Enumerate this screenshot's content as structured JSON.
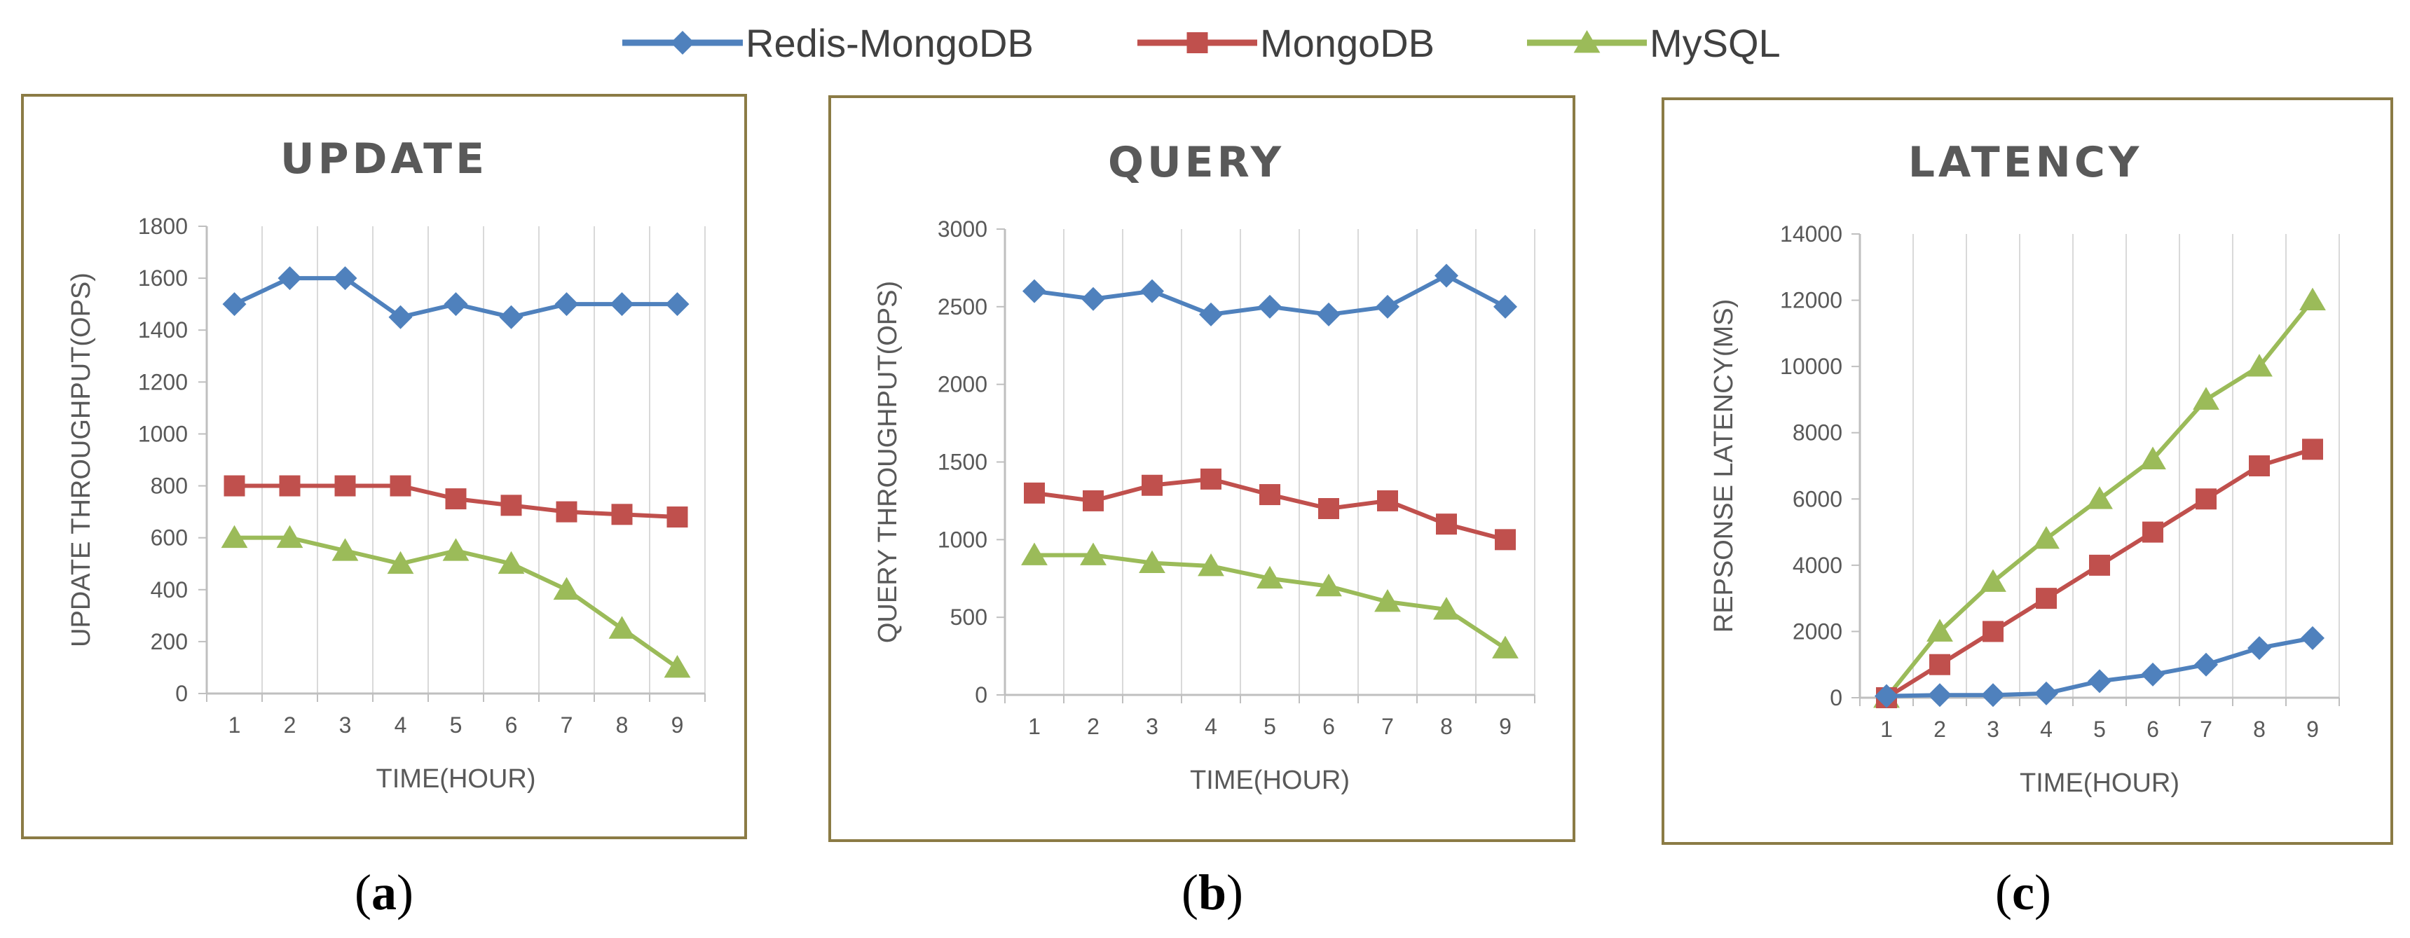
{
  "legend": [
    {
      "name": "Redis-MongoDB",
      "color": "#4F81BD",
      "marker": "diamond"
    },
    {
      "name": "MongoDB",
      "color": "#C0504D",
      "marker": "square"
    },
    {
      "name": "MySQL",
      "color": "#9BBB59",
      "marker": "triangle"
    }
  ],
  "chart_data": [
    {
      "type": "line",
      "title": "UPDATE",
      "panel_label": "a",
      "xlabel": "TIME(HOUR)",
      "ylabel": "UPDATE THROUGHPUT(OPS)",
      "x": [
        1,
        2,
        3,
        4,
        5,
        6,
        7,
        8,
        9
      ],
      "ylim": [
        0,
        1800
      ],
      "yticks": [
        0,
        200,
        400,
        600,
        800,
        1000,
        1200,
        1400,
        1600,
        1800
      ],
      "series": [
        {
          "name": "Redis-MongoDB",
          "values": [
            1500,
            1600,
            1600,
            1450,
            1500,
            1450,
            1500,
            1500,
            1500
          ]
        },
        {
          "name": "MongoDB",
          "values": [
            800,
            800,
            800,
            800,
            750,
            725,
            700,
            690,
            680
          ]
        },
        {
          "name": "MySQL",
          "values": [
            600,
            600,
            550,
            500,
            550,
            500,
            400,
            250,
            100
          ]
        }
      ]
    },
    {
      "type": "line",
      "title": "QUERY",
      "panel_label": "b",
      "xlabel": "TIME(HOUR)",
      "ylabel": "QUERY THROUGHPUT(OPS)",
      "x": [
        1,
        2,
        3,
        4,
        5,
        6,
        7,
        8,
        9
      ],
      "ylim": [
        0,
        3000
      ],
      "yticks": [
        0,
        500,
        1000,
        1500,
        2000,
        2500,
        3000
      ],
      "series": [
        {
          "name": "Redis-MongoDB",
          "values": [
            2600,
            2550,
            2600,
            2450,
            2500,
            2450,
            2500,
            2700,
            2500
          ]
        },
        {
          "name": "MongoDB",
          "values": [
            1300,
            1250,
            1350,
            1390,
            1290,
            1200,
            1250,
            1100,
            1000
          ]
        },
        {
          "name": "MySQL",
          "values": [
            900,
            900,
            850,
            830,
            750,
            700,
            600,
            550,
            300
          ]
        }
      ]
    },
    {
      "type": "line",
      "title": "LATENCY",
      "panel_label": "c",
      "xlabel": "TIME(HOUR)",
      "ylabel": "REPSONSE LATENCY(MS)",
      "x": [
        1,
        2,
        3,
        4,
        5,
        6,
        7,
        8,
        9
      ],
      "ylim": [
        0,
        14000
      ],
      "yticks": [
        0,
        2000,
        4000,
        6000,
        8000,
        10000,
        12000,
        14000
      ],
      "series": [
        {
          "name": "Redis-MongoDB",
          "values": [
            50,
            80,
            80,
            130,
            500,
            700,
            1000,
            1500,
            1800
          ]
        },
        {
          "name": "MongoDB",
          "values": [
            0,
            1000,
            2000,
            3000,
            4000,
            5000,
            6000,
            7000,
            7500
          ]
        },
        {
          "name": "MySQL",
          "values": [
            0,
            2000,
            3500,
            4800,
            6000,
            7200,
            9000,
            10000,
            12000
          ]
        }
      ]
    }
  ]
}
